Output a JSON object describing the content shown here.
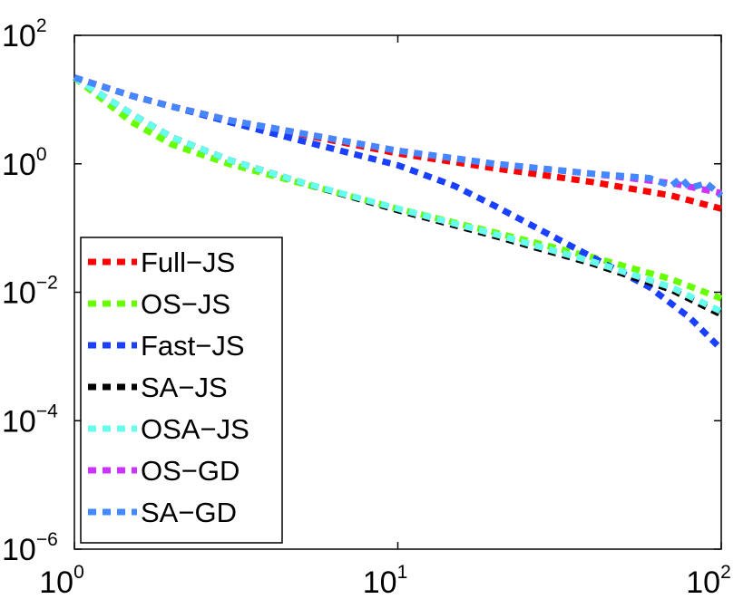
{
  "chart_data": {
    "type": "line",
    "title": "",
    "xlabel": "",
    "ylabel": "",
    "xscale": "log",
    "yscale": "log",
    "xlim": [
      1,
      100
    ],
    "ylim": [
      1e-06,
      100
    ],
    "x_ticks": [
      {
        "base": "10",
        "exp": "0",
        "value": 1
      },
      {
        "base": "10",
        "exp": "1",
        "value": 10
      },
      {
        "base": "10",
        "exp": "2",
        "value": 100
      }
    ],
    "y_ticks": [
      {
        "base": "10",
        "exp": "2",
        "value": 100
      },
      {
        "base": "10",
        "exp": "0",
        "value": 1
      },
      {
        "base": "10",
        "exp": "−2",
        "value": 0.01
      },
      {
        "base": "10",
        "exp": "−4",
        "value": 0.0001
      },
      {
        "base": "10",
        "exp": "−6",
        "value": 1e-06
      }
    ],
    "legend_position": "lower-left",
    "series": [
      {
        "name": "Full−JS",
        "color": "#ff0000",
        "x": [
          1,
          1.5,
          2,
          3,
          5,
          10,
          20,
          40,
          70,
          100
        ],
        "y": [
          22,
          11.5,
          7.8,
          4.8,
          2.9,
          1.45,
          0.85,
          0.52,
          0.32,
          0.2
        ]
      },
      {
        "name": "OS−JS",
        "color": "#66ff00",
        "x": [
          1,
          1.5,
          2,
          3,
          5,
          10,
          20,
          40,
          70,
          100
        ],
        "y": [
          22,
          4.5,
          2.0,
          1.0,
          0.5,
          0.2,
          0.085,
          0.035,
          0.016,
          0.008
        ]
      },
      {
        "name": "Fast−JS",
        "color": "#1a40ff",
        "x": [
          1,
          1.5,
          2,
          3,
          5,
          10,
          15,
          20,
          30,
          40,
          60,
          80,
          100
        ],
        "y": [
          22,
          11.5,
          7.8,
          4.5,
          2.3,
          0.95,
          0.45,
          0.22,
          0.075,
          0.035,
          0.012,
          0.004,
          0.0013
        ]
      },
      {
        "name": "SA−JS",
        "color": "#000000",
        "x": [
          1,
          1.5,
          2,
          3,
          5,
          10,
          20,
          40,
          70,
          100
        ],
        "y": [
          22,
          6.0,
          2.6,
          1.15,
          0.52,
          0.19,
          0.075,
          0.028,
          0.011,
          0.0045
        ]
      },
      {
        "name": "OSA−JS",
        "color": "#66ffee",
        "x": [
          1,
          1.5,
          2,
          3,
          5,
          10,
          20,
          40,
          70,
          100
        ],
        "y": [
          22,
          6.0,
          2.6,
          1.15,
          0.52,
          0.2,
          0.08,
          0.03,
          0.012,
          0.005
        ]
      },
      {
        "name": "OS−GD",
        "color": "#cc33ff",
        "x": [
          1,
          1.5,
          2,
          3,
          5,
          10,
          20,
          40,
          70,
          100
        ],
        "y": [
          22,
          11.5,
          7.8,
          4.8,
          3.0,
          1.6,
          1.0,
          0.7,
          0.5,
          0.35
        ]
      },
      {
        "name": "SA−GD",
        "color": "#4488ff",
        "x": [
          1,
          1.5,
          2,
          3,
          5,
          10,
          20,
          40,
          60,
          70,
          75,
          80,
          90,
          100
        ],
        "y": [
          22,
          11.5,
          7.8,
          4.8,
          3.0,
          1.6,
          1.0,
          0.7,
          0.6,
          0.45,
          0.6,
          0.42,
          0.5,
          0.32
        ]
      }
    ]
  }
}
